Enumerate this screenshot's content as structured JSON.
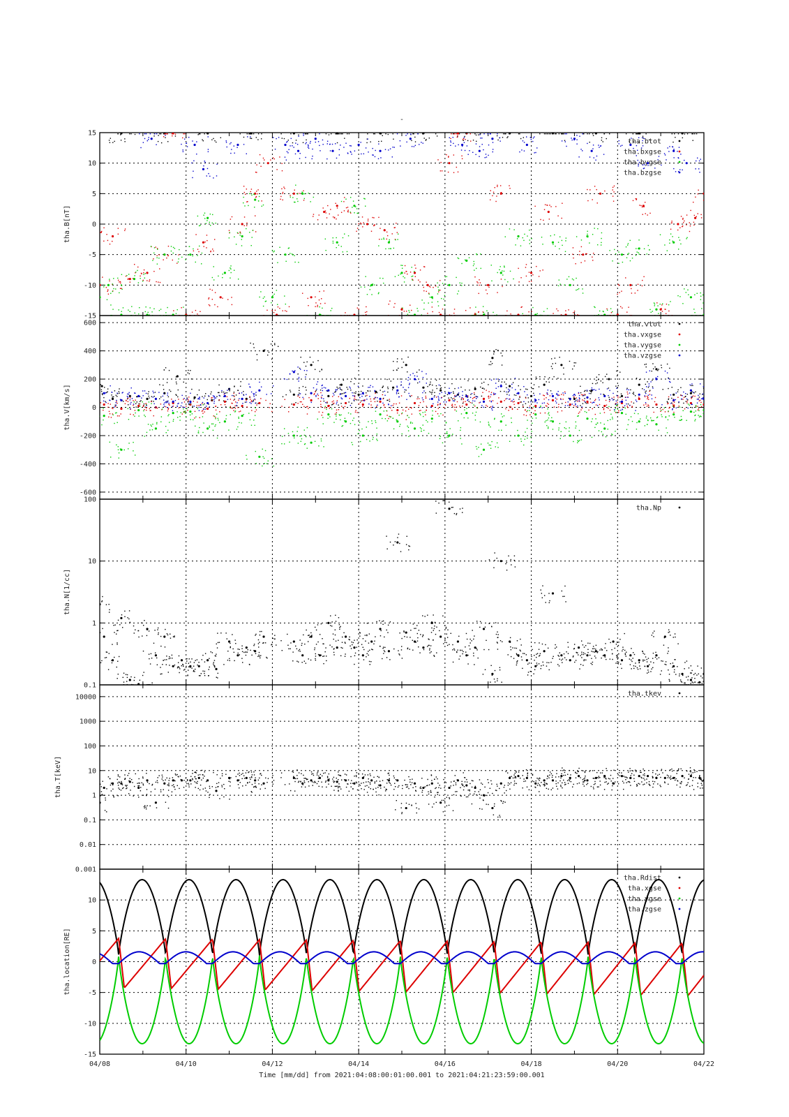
{
  "title": "-",
  "xaxis": {
    "start_day": 8,
    "end_day": 22,
    "tick_labels": [
      "04/08",
      "04/10",
      "04/12",
      "04/14",
      "04/16",
      "04/18",
      "04/20",
      "04/22"
    ],
    "caption": "Time [mm/dd]  from 2021:04:08:00:01:00.001  to  2021:04:21:23:59:00.001"
  },
  "colors": {
    "black": "#000000",
    "red": "#dd0000",
    "green": "#00cc00",
    "blue": "#0000cc"
  },
  "chart_data": [
    {
      "type": "scatter",
      "ylabel": "tha.B[nT]",
      "ylim": [
        -15,
        15
      ],
      "yscale": "linear",
      "yticks": [
        -15,
        -10,
        -5,
        0,
        5,
        10,
        15
      ],
      "ytick_labels": [
        "-15",
        "-10",
        "-5",
        "0",
        "5",
        "10",
        "15"
      ],
      "legend": [
        "tha.btot",
        "tha.bxgse",
        "tha.bygse",
        "tha.bzgse"
      ],
      "series": [
        {
          "name": "tha.btot",
          "color": "black",
          "x": [
            8.5,
            9.5,
            10.5,
            11.5,
            12.5,
            13.5,
            14.5,
            15.5,
            16.5,
            17.5,
            18.5,
            19.5,
            20.5,
            21.5
          ],
          "y": [
            15,
            15,
            15,
            15,
            15,
            15,
            15,
            15,
            15,
            15,
            15,
            15,
            15,
            15
          ]
        },
        {
          "name": "tha.bxgse",
          "color": "red",
          "x": [
            8.0,
            8.3,
            8.7,
            9.1,
            9.5,
            9.7,
            10.0,
            10.4,
            10.8,
            11.3,
            11.6,
            11.9,
            12.1,
            12.5,
            12.9,
            13.2,
            13.5,
            13.9,
            14.2,
            14.6,
            15.0,
            15.3,
            15.6,
            15.9,
            16.1,
            16.3,
            16.7,
            17.0,
            17.3,
            17.7,
            18.0,
            18.4,
            18.8,
            19.2,
            19.6,
            20.0,
            20.3,
            20.6,
            21.0,
            21.4,
            21.8,
            22.0
          ],
          "y": [
            -10,
            -2,
            -9,
            -8,
            -5,
            15,
            -15,
            -3,
            -12,
            0,
            5,
            10,
            -15,
            5,
            -12,
            2,
            3,
            -15,
            0,
            -1,
            -14,
            -8,
            -10,
            -15,
            10,
            15,
            -15,
            -10,
            5,
            -15,
            -8,
            2,
            -15,
            -5,
            5,
            -15,
            -10,
            3,
            -14,
            0,
            1,
            5
          ]
        },
        {
          "name": "tha.bygse",
          "color": "green",
          "x": [
            8.0,
            8.2,
            8.5,
            8.8,
            9.1,
            9.5,
            9.7,
            10.1,
            10.5,
            10.9,
            11.3,
            11.6,
            12.0,
            12.3,
            12.7,
            13.1,
            13.5,
            13.9,
            14.3,
            14.7,
            15.0,
            15.3,
            15.7,
            16.1,
            16.5,
            16.9,
            17.3,
            17.7,
            18.1,
            18.5,
            18.9,
            19.3,
            19.7,
            20.1,
            20.5,
            20.9,
            21.3,
            21.7,
            22.0
          ],
          "y": [
            -12,
            -10,
            -15,
            -9,
            -15,
            -5,
            -15,
            -5,
            1,
            -8,
            -2,
            4,
            -12,
            -5,
            5,
            -15,
            -3,
            3,
            -10,
            -3,
            -8,
            -15,
            -12,
            -10,
            -6,
            -15,
            -8,
            -2,
            -15,
            -3,
            -10,
            -2,
            -15,
            -5,
            -4,
            -14,
            -3,
            -12,
            -15
          ]
        },
        {
          "name": "tha.bzgse",
          "color": "blue",
          "x": [
            9.2,
            10.2,
            10.4,
            11.2,
            12.3,
            12.6,
            13.0,
            13.4,
            14.0,
            14.5,
            15.2,
            16.4,
            16.8,
            17.1,
            17.9,
            19.0,
            19.4,
            20.3,
            20.7,
            21.3,
            21.6
          ],
          "y": [
            14,
            13,
            9,
            13,
            13,
            12,
            14,
            12,
            13,
            12,
            14,
            13,
            12,
            14,
            13,
            14,
            12,
            13,
            10,
            12,
            10
          ]
        }
      ]
    },
    {
      "type": "scatter",
      "ylabel": "tha.V[km/s]",
      "ylim": [
        -650,
        650
      ],
      "yscale": "linear",
      "yticks": [
        -600,
        -400,
        -200,
        0,
        200,
        400,
        600
      ],
      "ytick_labels": [
        "-600",
        "-400",
        "-200",
        "0",
        "200",
        "400",
        "600"
      ],
      "legend": [
        "tha.vtot",
        "tha.vxgse",
        "tha.vygse",
        "tha.vzgse"
      ],
      "series": [
        {
          "name": "tha.vtot",
          "color": "black",
          "x": [
            8.05,
            8.3,
            8.7,
            9.1,
            9.5,
            9.8,
            10.2,
            10.6,
            11.0,
            11.4,
            11.8,
            12.5,
            12.9,
            13.3,
            13.6,
            14.0,
            14.4,
            14.8,
            15.1,
            15.5,
            15.9,
            16.3,
            16.7,
            17.1,
            17.5,
            18.0,
            18.3,
            18.7,
            19.0,
            19.4,
            19.8,
            20.1,
            20.5,
            20.9,
            21.3,
            21.7,
            22.0
          ],
          "y": [
            150,
            60,
            80,
            60,
            100,
            220,
            70,
            50,
            130,
            60,
            400,
            90,
            300,
            80,
            160,
            90,
            110,
            140,
            300,
            140,
            120,
            90,
            130,
            350,
            150,
            80,
            160,
            300,
            60,
            120,
            200,
            80,
            160,
            270,
            90,
            100,
            60
          ]
        },
        {
          "name": "tha.vxgse",
          "color": "red",
          "x": [
            8.1,
            8.5,
            8.9,
            9.3,
            9.7,
            10.1,
            10.5,
            10.9,
            11.3,
            11.7,
            12.5,
            12.9,
            13.3,
            13.7,
            14.1,
            14.5,
            14.9,
            15.3,
            15.7,
            16.1,
            16.5,
            16.9,
            17.3,
            17.7,
            18.1,
            18.5,
            18.9,
            19.3,
            19.7,
            20.1,
            20.5,
            20.9,
            21.3,
            21.7,
            22.0
          ],
          "y": [
            20,
            -10,
            10,
            0,
            30,
            20,
            -10,
            40,
            10,
            30,
            20,
            50,
            10,
            30,
            20,
            40,
            -20,
            30,
            10,
            50,
            20,
            60,
            40,
            30,
            10,
            50,
            20,
            40,
            10,
            30,
            60,
            20,
            10,
            30,
            20
          ]
        },
        {
          "name": "tha.vygse",
          "color": "green",
          "x": [
            8.1,
            8.5,
            8.9,
            9.3,
            9.7,
            10.1,
            10.5,
            10.9,
            11.3,
            11.7,
            12.5,
            12.9,
            13.3,
            13.7,
            14.1,
            14.5,
            14.9,
            15.3,
            15.7,
            16.1,
            16.5,
            16.9,
            17.3,
            17.7,
            18.1,
            18.5,
            18.9,
            19.3,
            19.7,
            20.1,
            20.5,
            20.9,
            21.3,
            21.7,
            22.0
          ],
          "y": [
            -60,
            -300,
            -20,
            -150,
            -40,
            -30,
            -150,
            -100,
            -60,
            -350,
            -200,
            -250,
            -50,
            -100,
            -200,
            -50,
            -100,
            -150,
            -80,
            -200,
            -40,
            -300,
            -100,
            -200,
            -50,
            -100,
            -200,
            -80,
            -150,
            -40,
            -100,
            -120,
            -50,
            -30,
            -20
          ]
        },
        {
          "name": "tha.vzgse",
          "color": "blue",
          "x": [
            8.1,
            8.5,
            8.9,
            9.3,
            9.7,
            10.1,
            10.5,
            10.9,
            11.3,
            11.7,
            12.5,
            12.9,
            13.3,
            13.7,
            14.1,
            14.5,
            14.9,
            15.3,
            15.7,
            16.1,
            16.5,
            16.9,
            17.3,
            17.7,
            18.1,
            18.5,
            18.9,
            19.3,
            19.7,
            20.1,
            20.5,
            20.9,
            21.3,
            21.7,
            22.0
          ],
          "y": [
            100,
            50,
            80,
            60,
            40,
            40,
            30,
            80,
            60,
            120,
            250,
            100,
            120,
            80,
            100,
            60,
            120,
            200,
            60,
            100,
            80,
            40,
            150,
            100,
            50,
            80,
            60,
            70,
            80,
            40,
            90,
            200,
            50,
            120,
            60
          ]
        }
      ]
    },
    {
      "type": "scatter",
      "ylabel": "tha.N[1/cc]",
      "ylim": [
        0.1,
        100
      ],
      "yscale": "log",
      "yticks": [
        0.1,
        1,
        10,
        100
      ],
      "ytick_labels": [
        "0.1",
        "1",
        "10",
        "100"
      ],
      "legend": [
        "tha.Np"
      ],
      "series": [
        {
          "name": "tha.Np",
          "color": "black",
          "x": [
            8.0,
            8.1,
            8.3,
            8.5,
            8.7,
            8.9,
            9.1,
            9.3,
            9.5,
            9.7,
            9.9,
            10.1,
            10.3,
            10.5,
            10.7,
            11.0,
            11.2,
            11.4,
            11.6,
            11.8,
            12.5,
            12.7,
            12.9,
            13.1,
            13.3,
            13.5,
            13.7,
            13.9,
            14.1,
            14.3,
            14.5,
            14.7,
            14.9,
            15.1,
            15.3,
            15.5,
            15.7,
            15.9,
            16.1,
            16.3,
            16.5,
            16.7,
            16.9,
            17.1,
            17.3,
            17.5,
            17.7,
            17.9,
            18.1,
            18.3,
            18.5,
            18.7,
            18.9,
            19.1,
            19.3,
            19.5,
            19.7,
            19.9,
            20.1,
            20.3,
            20.5,
            20.7,
            20.9,
            21.1,
            21.3,
            21.5,
            21.7,
            21.9,
            22.0
          ],
          "y": [
            2,
            0.6,
            0.25,
            1.2,
            0.12,
            0.1,
            0.8,
            0.3,
            0.6,
            0.2,
            0.25,
            0.2,
            0.2,
            0.25,
            0.18,
            0.5,
            0.3,
            0.4,
            0.35,
            0.6,
            0.5,
            0.3,
            0.6,
            0.3,
            1.0,
            0.4,
            0.6,
            0.4,
            0.3,
            0.5,
            0.8,
            0.35,
            20,
            0.7,
            0.5,
            0.4,
            1.0,
            0.6,
            70,
            0.5,
            0.3,
            0.4,
            0.8,
            0.15,
            10,
            0.5,
            0.3,
            0.25,
            0.2,
            0.35,
            3,
            0.3,
            0.25,
            0.4,
            0.3,
            0.35,
            0.3,
            0.5,
            0.25,
            0.3,
            0.25,
            0.2,
            0.3,
            0.6,
            0.2,
            0.15,
            0.12,
            0.11,
            0.15
          ]
        }
      ]
    },
    {
      "type": "scatter",
      "ylabel": "tha.T[keV]",
      "ylim": [
        0.001,
        30000
      ],
      "yscale": "log",
      "yticks": [
        0.001,
        0.01,
        0.1,
        1,
        10,
        100,
        1000,
        10000
      ],
      "ytick_labels": [
        "0.001",
        "0.01",
        "0.1",
        "1",
        "10",
        "100",
        "1000",
        "10000"
      ],
      "legend": [
        "tha.tkev"
      ],
      "series": [
        {
          "name": "tha.tkev",
          "color": "black",
          "x": [
            8.0,
            8.1,
            8.3,
            8.5,
            8.7,
            8.9,
            9.1,
            9.3,
            9.5,
            9.7,
            9.9,
            10.1,
            10.3,
            10.5,
            10.7,
            11.0,
            11.2,
            11.4,
            11.6,
            11.8,
            12.5,
            12.7,
            12.9,
            13.1,
            13.3,
            13.5,
            13.7,
            13.9,
            14.1,
            14.3,
            14.5,
            14.7,
            14.9,
            15.1,
            15.3,
            15.5,
            15.7,
            15.9,
            16.1,
            16.3,
            16.5,
            16.7,
            16.9,
            17.1,
            17.3,
            17.5,
            17.7,
            17.9,
            18.1,
            18.3,
            18.5,
            18.7,
            18.9,
            19.1,
            19.3,
            19.5,
            19.7,
            19.9,
            20.1,
            20.3,
            20.5,
            20.7,
            20.9,
            21.1,
            21.3,
            21.5,
            21.7,
            21.9,
            22.0
          ],
          "y": [
            0.5,
            2,
            3,
            3,
            3.5,
            2,
            4,
            0.5,
            3,
            4,
            4,
            4,
            5,
            4,
            1.5,
            5,
            4,
            5,
            4,
            3,
            5,
            3,
            4,
            5,
            4,
            3.5,
            4,
            3,
            5,
            4,
            2.5,
            4,
            4,
            0.3,
            3,
            2,
            3,
            0.5,
            2,
            4,
            2.5,
            2,
            1,
            0.3,
            3,
            5,
            6,
            5,
            3,
            4,
            4,
            6,
            5,
            6,
            4,
            5,
            6,
            3,
            6,
            5,
            6,
            6,
            5,
            5,
            5,
            6,
            6,
            5,
            4
          ]
        }
      ]
    },
    {
      "type": "line",
      "ylabel": "tha.location[RE]",
      "ylim": [
        -15,
        15
      ],
      "yscale": "linear",
      "yticks": [
        -15,
        -10,
        -5,
        0,
        5,
        10
      ],
      "ytick_labels": [
        "-15",
        "-10",
        "-5",
        "0",
        "5",
        "10"
      ],
      "legend": [
        "tha.Rdist",
        "tha.xgse",
        "tha.ygse",
        "tha.zgse"
      ],
      "orbit_period_days": 1.088,
      "orbit_phase_start_days": 0.65,
      "series": [
        {
          "name": "tha.Rdist",
          "color": "black",
          "min": 1,
          "max": 13.3
        },
        {
          "name": "tha.xgse",
          "color": "red",
          "amp_start": 3.8,
          "amp_end": 3,
          "min_start": -4.2,
          "min_end": -5.6
        },
        {
          "name": "tha.ygse",
          "color": "green",
          "min": -13.3,
          "max": 1
        },
        {
          "name": "tha.zgse",
          "color": "blue",
          "min": -0.3,
          "max": 1.6
        }
      ]
    }
  ]
}
